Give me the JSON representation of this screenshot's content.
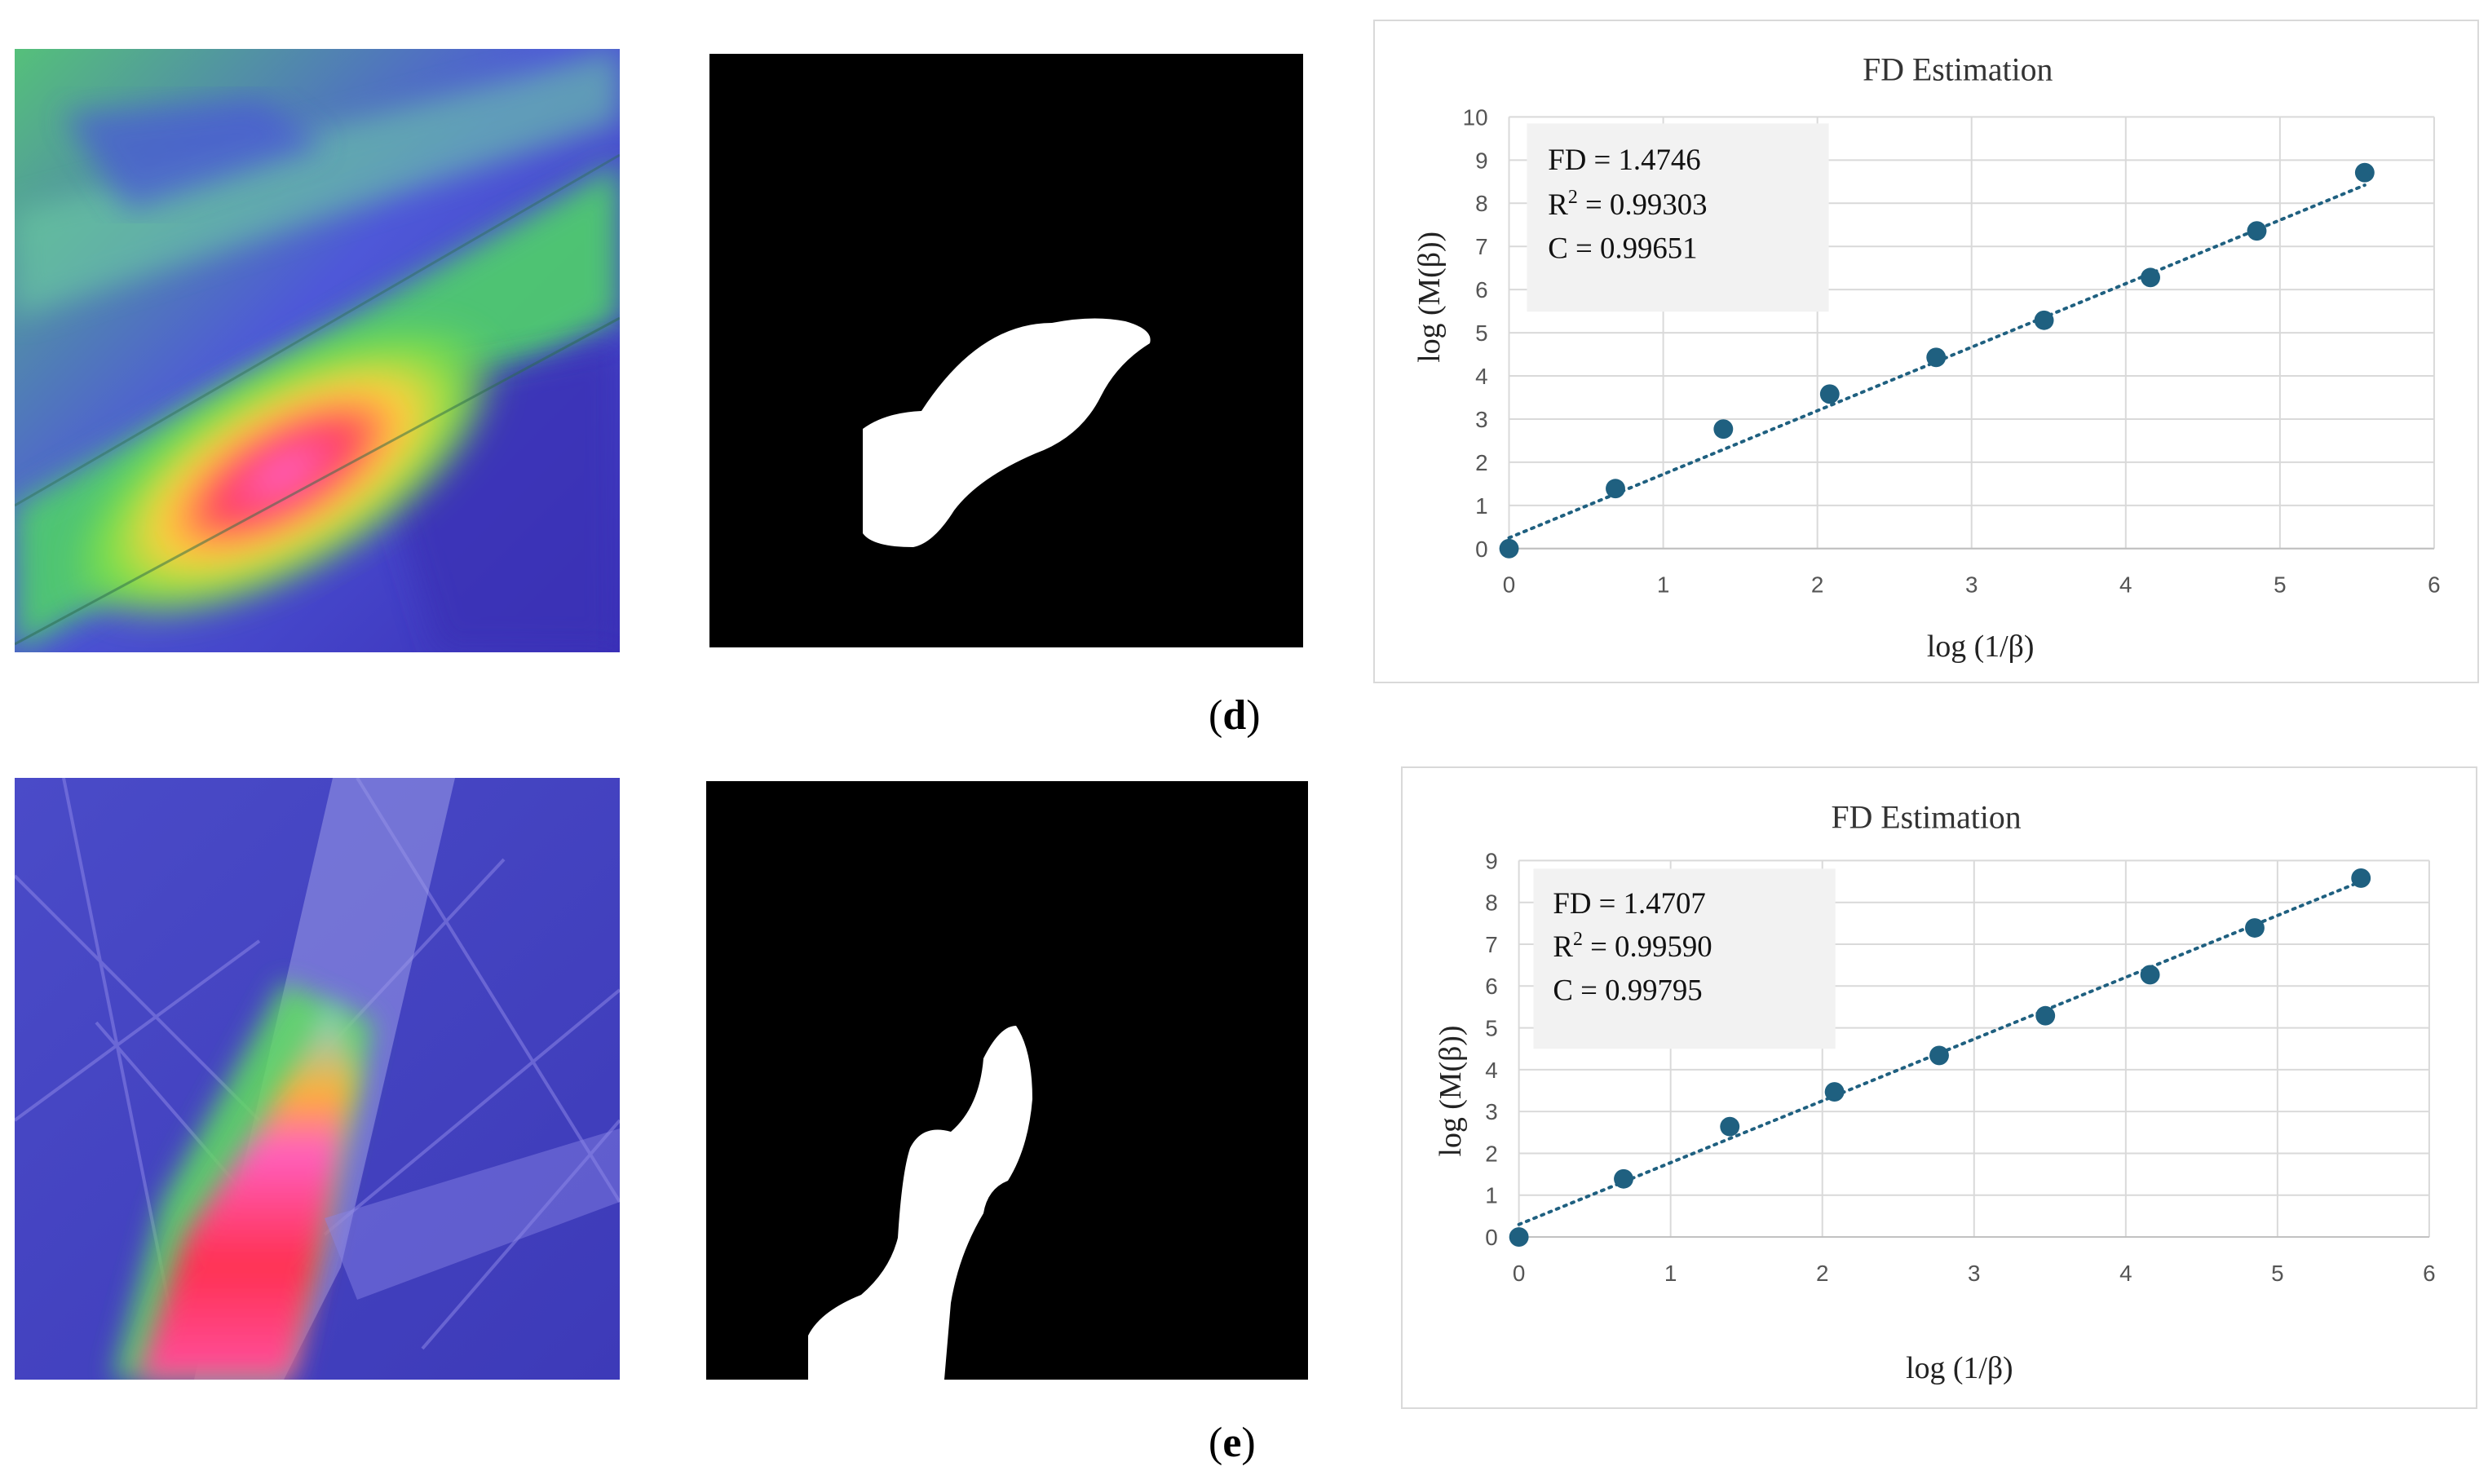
{
  "captions": {
    "d": "d",
    "e": "e"
  },
  "colors": {
    "point": "#1f6080",
    "trendline": "#1f6080",
    "grid": "#d9d9d9",
    "annotation_bg": "#f2f2f2",
    "mask_bg": "#000000",
    "mask_fg": "#ffffff"
  },
  "chart_data": [
    {
      "type": "scatter",
      "title": "FD Estimation",
      "xlabel": "log (1/β)",
      "ylabel": "log (M(β))",
      "xlim": [
        0,
        6
      ],
      "ylim": [
        0,
        10
      ],
      "xticks": [
        0,
        1,
        2,
        3,
        4,
        5,
        6
      ],
      "yticks": [
        0,
        1,
        2,
        3,
        4,
        5,
        6,
        7,
        8,
        9,
        10
      ],
      "grid": true,
      "x": [
        0,
        0.69,
        1.39,
        2.08,
        2.77,
        3.47,
        4.16,
        4.85,
        5.55
      ],
      "y": [
        0,
        1.39,
        2.77,
        3.58,
        4.43,
        5.29,
        6.28,
        7.36,
        8.71
      ],
      "trendline": {
        "type": "linear",
        "style": "dotted",
        "x0": 0,
        "y0": 0.25,
        "x1": 5.55,
        "y1": 8.42
      },
      "annotation": {
        "fd": "FD = 1.4746",
        "r2_prefix": "R",
        "r2_sup": "2",
        "r2_value": " = 0.99303",
        "c": "C = 0.99651"
      }
    },
    {
      "type": "scatter",
      "title": "FD Estimation",
      "xlabel": "log (1/β)",
      "ylabel": "log (M(β))",
      "xlim": [
        0,
        6
      ],
      "ylim": [
        0,
        9
      ],
      "xticks": [
        0,
        1,
        2,
        3,
        4,
        5,
        6
      ],
      "yticks": [
        0,
        1,
        2,
        3,
        4,
        5,
        6,
        7,
        8,
        9
      ],
      "grid": true,
      "x": [
        0,
        0.69,
        1.39,
        2.08,
        2.77,
        3.47,
        4.16,
        4.85,
        5.55
      ],
      "y": [
        0,
        1.39,
        2.64,
        3.47,
        4.34,
        5.29,
        6.27,
        7.39,
        8.58
      ],
      "trendline": {
        "type": "linear",
        "style": "dotted",
        "x0": 0,
        "y0": 0.3,
        "x1": 5.55,
        "y1": 8.5
      },
      "annotation": {
        "fd": "FD = 1.4707",
        "r2_prefix": "R",
        "r2_sup": "2",
        "r2_value": " = 0.99590",
        "c": "C = 0.99795"
      }
    }
  ]
}
